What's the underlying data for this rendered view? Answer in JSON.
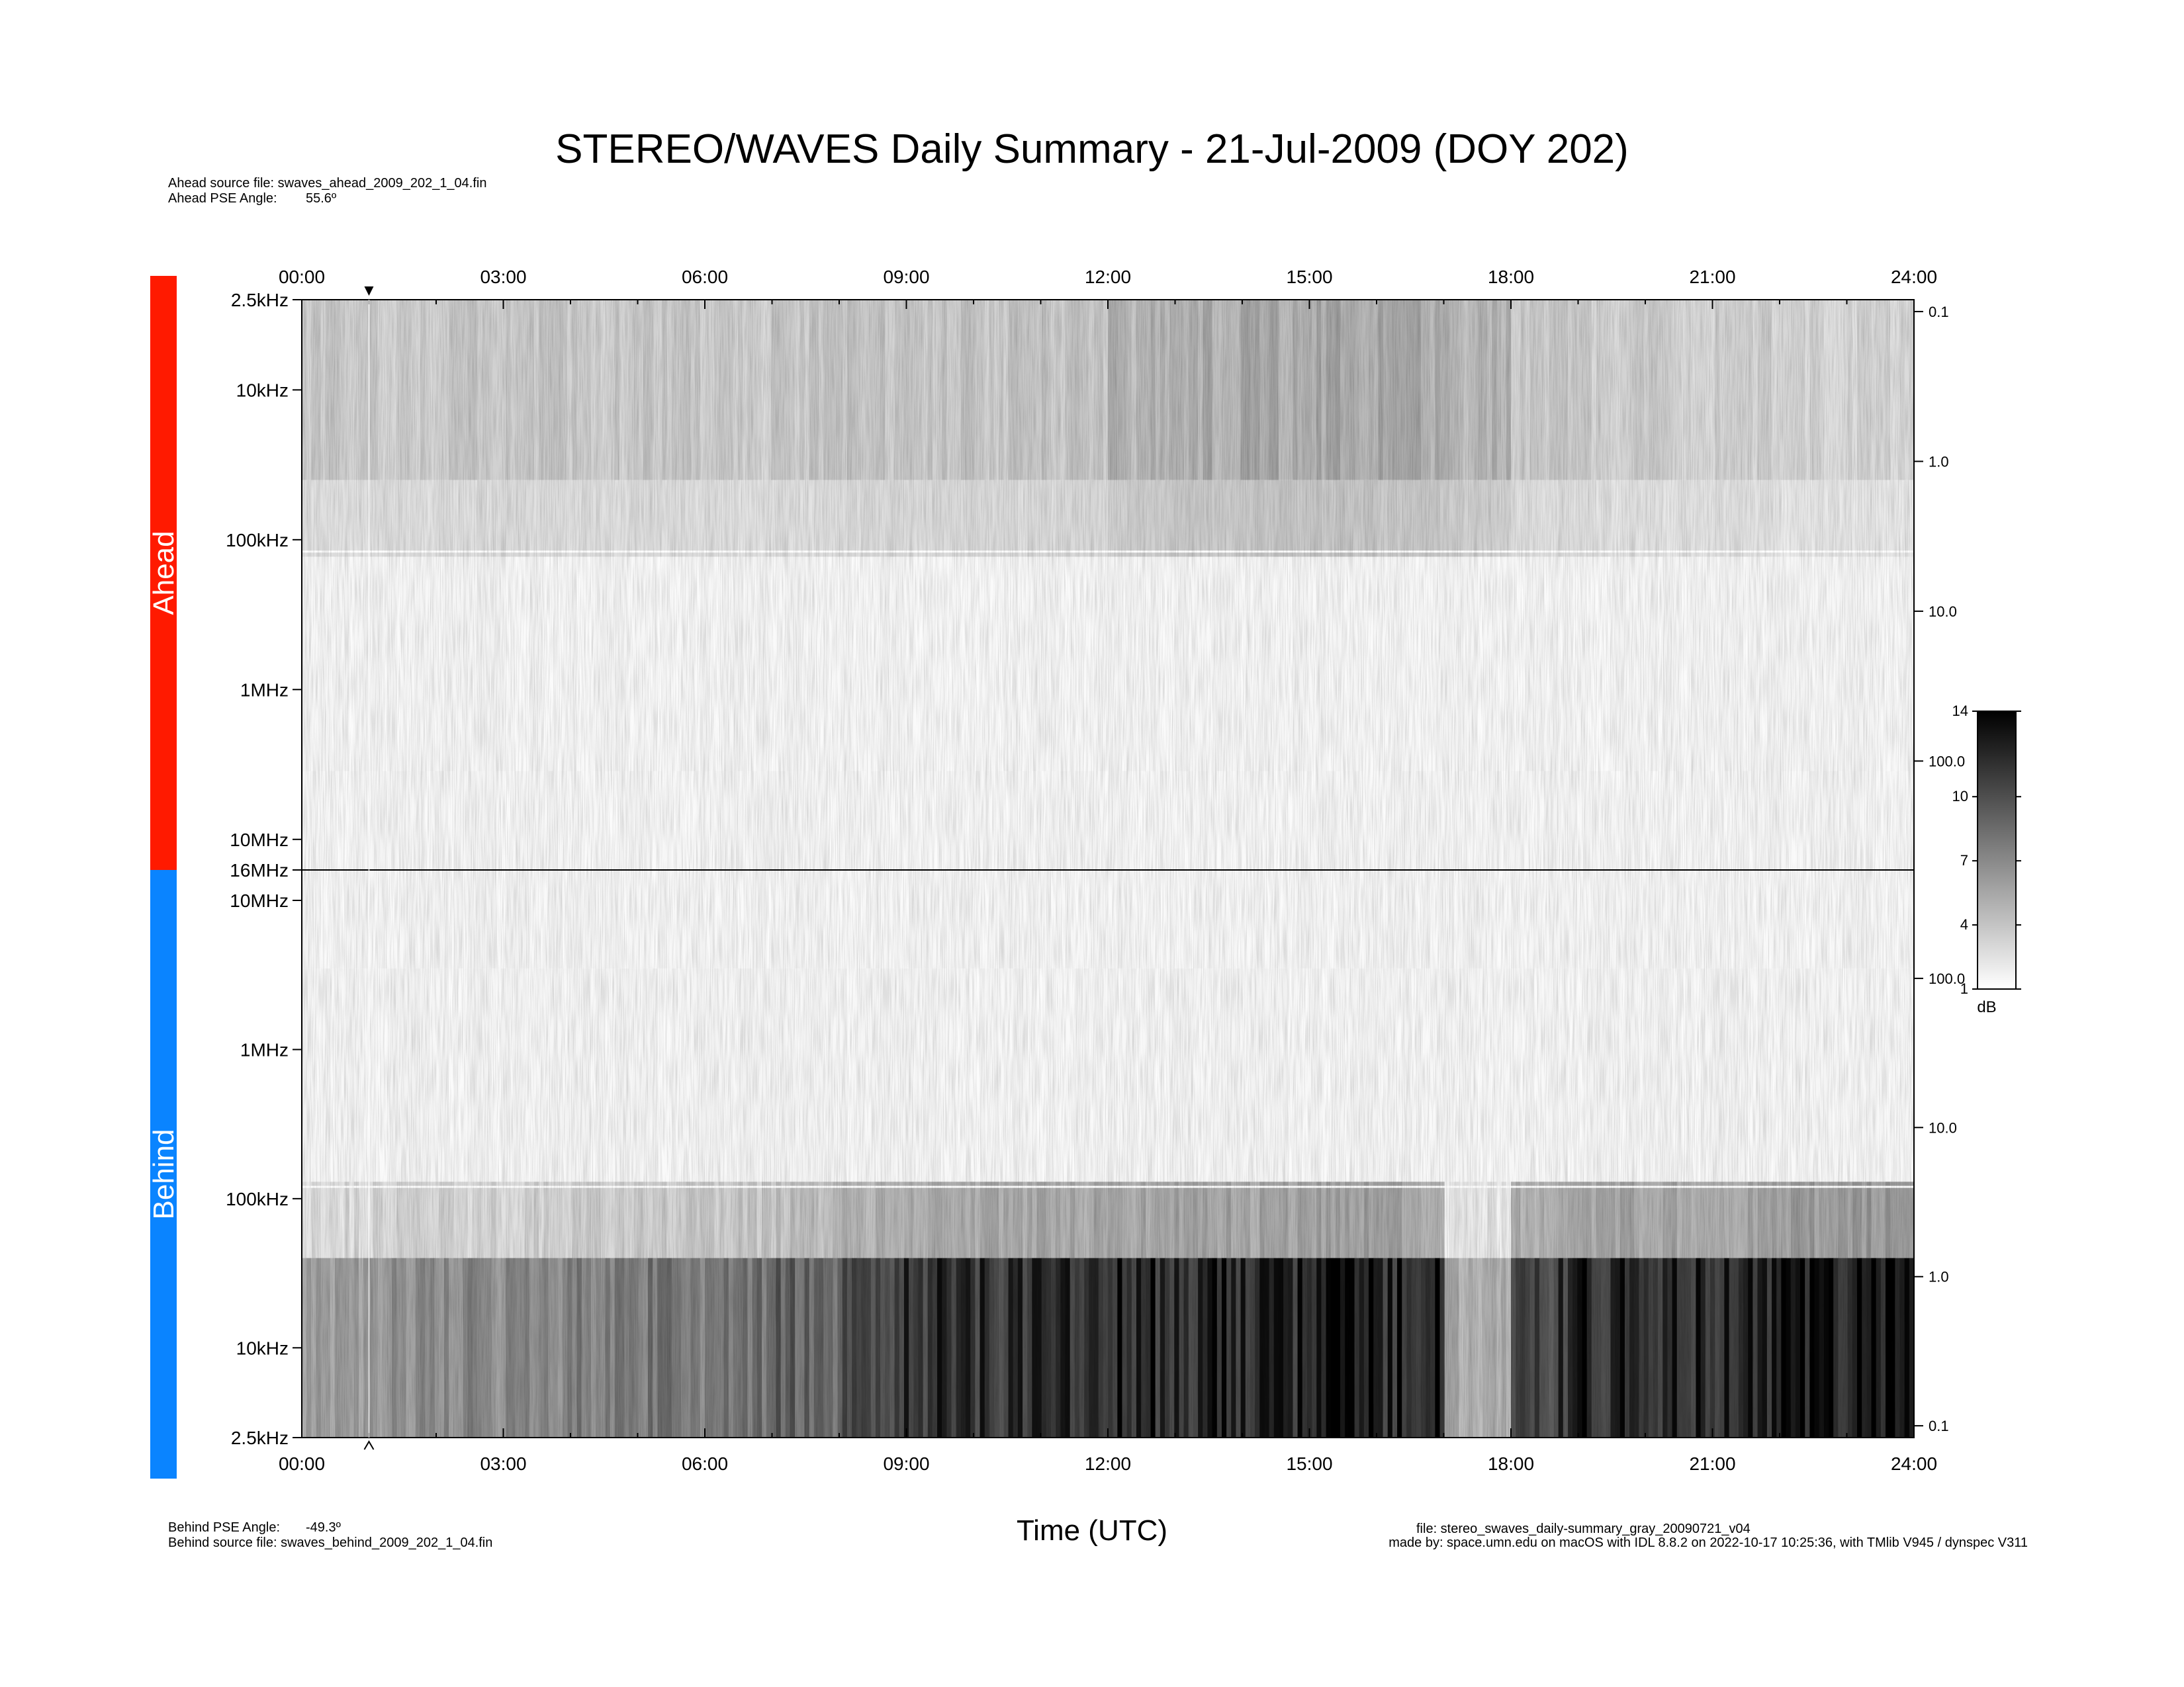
{
  "header": {
    "title": "STEREO/WAVES Daily Summary - 21-Jul-2009 (DOY 202)",
    "ahead_source": "Ahead source file: swaves_ahead_2009_202_1_04.fin",
    "ahead_pse_label": "Ahead PSE Angle:",
    "ahead_pse_value": "55.6º"
  },
  "footer": {
    "behind_pse_label": "Behind PSE Angle:",
    "behind_pse_value": "-49.3º",
    "behind_source": "Behind source file: swaves_behind_2009_202_1_04.fin",
    "file_line": "file: stereo_swaves_daily-summary_gray_20090721_v04",
    "made_by_line": "made by: space.umn.edu on macOS with IDL 8.8.2 on 2022-10-17 10:25:36, with TMlib V945 / dynspec V311"
  },
  "colors": {
    "ahead_band": "#ff1a00",
    "behind_band": "#0a84ff",
    "axis": "#000000"
  },
  "chart_data": {
    "type": "heatmap",
    "title": "STEREO/WAVES Daily Summary - 21-Jul-2009 (DOY 202)",
    "xlabel": "Time (UTC)",
    "x_ticks": [
      "00:00",
      "03:00",
      "06:00",
      "09:00",
      "12:00",
      "15:00",
      "18:00",
      "21:00",
      "24:00"
    ],
    "x_range_hours": [
      0,
      24
    ],
    "marker_time_hours": 1.0,
    "frequency_scale": "log",
    "panels": [
      {
        "name": "Ahead",
        "freq_range_hz": [
          2500,
          16000000
        ],
        "orientation": "low-frequency-top",
        "y_ticks": [
          "2.5kHz",
          "10kHz",
          "100kHz",
          "1MHz",
          "10MHz",
          "16MHz"
        ],
        "right_ticks": [
          "0.1",
          "1.0",
          "10.0",
          "100.0"
        ],
        "intensity_by_time": [
          3.5,
          3.5,
          3.6,
          3.6,
          3.6,
          3.6,
          3.5,
          3.6,
          3.8,
          3.8,
          3.7,
          3.8,
          4.6,
          5.0,
          5.2,
          5.2,
          5.0,
          4.6,
          3.6,
          3.3,
          3.3,
          3.2,
          3.0,
          3.0
        ]
      },
      {
        "name": "Behind",
        "freq_range_hz": [
          2500,
          16000000
        ],
        "orientation": "low-frequency-bottom",
        "y_ticks": [
          "10MHz",
          "1MHz",
          "100kHz",
          "10kHz",
          "2.5kHz"
        ],
        "right_ticks": [
          "100.0",
          "10.0",
          "1.0",
          "0.1"
        ],
        "intensity_by_time": [
          6.0,
          6.5,
          6.8,
          7.0,
          7.2,
          7.6,
          8.0,
          8.8,
          10.5,
          11.5,
          11.5,
          11.5,
          12.0,
          12.0,
          12.0,
          12.5,
          12.0,
          5.0,
          11.0,
          12.0,
          12.0,
          12.0,
          13.0,
          13.5
        ]
      }
    ],
    "colorbar": {
      "label": "dB",
      "min": 1,
      "max": 14,
      "ticks": [
        "1",
        "4",
        "7",
        "10",
        "14"
      ]
    }
  }
}
